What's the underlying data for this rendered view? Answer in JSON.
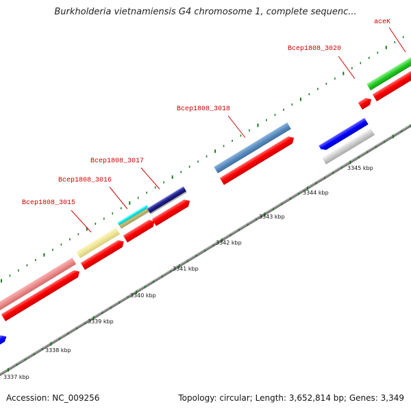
{
  "title": "Burkholderia vietnamiensis G4 chromosome 1, complete sequenc...",
  "footer": {
    "accession": "Accession: NC_009256",
    "topology": "Topology: circular; Length: 3,652,814 bp; Genes: 3,349"
  },
  "gene_labels": [
    "aceK",
    "Bcep1808_3020",
    "Bcep1808_3018",
    "Bcep1808_3017",
    "Bcep1808_3016",
    "Bcep1808_3015"
  ],
  "kbp_labels": [
    "3337 kbp",
    "3338 kbp",
    "3339 kbp",
    "3340 kbp",
    "3341 kbp",
    "3342 kbp",
    "3343 kbp",
    "3344 kbp",
    "3345 kbp"
  ],
  "colors": {
    "cds": "#ff0000",
    "backbone": "#7a7a7a",
    "tick": "#1a7a1a",
    "label": "#cc0000"
  }
}
